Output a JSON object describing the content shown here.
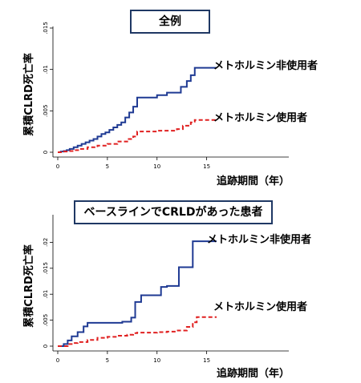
{
  "chart_data": [
    {
      "type": "line",
      "title": "全例",
      "xlabel": "追跡期間（年）",
      "ylabel": "累積CLRD死亡率",
      "xlim": [
        0,
        16
      ],
      "ylim": [
        0,
        0.015
      ],
      "x_ticks": [
        "0",
        "5",
        "10",
        "15"
      ],
      "y_ticks": [
        "0",
        ".005",
        ".01",
        ".015"
      ],
      "grid": false,
      "series": [
        {
          "name": "メトホルミン非使用者",
          "color": "#1f3a93",
          "style": "solid",
          "x": [
            0,
            0.3,
            0.6,
            0.9,
            1.2,
            1.6,
            2.0,
            2.4,
            2.8,
            3.2,
            3.6,
            4.0,
            4.4,
            4.8,
            5.2,
            5.6,
            6.0,
            6.4,
            6.8,
            7.2,
            7.6,
            8.0,
            9.0,
            10.0,
            11.0,
            12.0,
            12.4,
            13.0,
            13.4,
            13.8,
            16.0
          ],
          "y": [
            0,
            8e-05,
            0.00015,
            0.00025,
            0.0004,
            0.0006,
            0.0008,
            0.001,
            0.0012,
            0.0014,
            0.0016,
            0.0019,
            0.0022,
            0.0024,
            0.0027,
            0.003,
            0.0033,
            0.0036,
            0.0042,
            0.0048,
            0.0055,
            0.0066,
            0.0066,
            0.0069,
            0.0072,
            0.0072,
            0.0079,
            0.0086,
            0.0093,
            0.0102,
            0.0102
          ]
        },
        {
          "name": "メトホルミン使用者",
          "color": "#e02020",
          "style": "dashed",
          "x": [
            0,
            0.6,
            1.0,
            1.6,
            2.2,
            3.0,
            4.0,
            5.0,
            6.0,
            7.0,
            7.6,
            8.0,
            10.0,
            12.0,
            12.6,
            13.4,
            13.8,
            16.0
          ],
          "y": [
            0,
            8e-05,
            0.00015,
            0.00025,
            0.0004,
            0.0006,
            0.0008,
            0.001,
            0.0013,
            0.0016,
            0.0019,
            0.0025,
            0.0026,
            0.0028,
            0.0032,
            0.0036,
            0.0039,
            0.0039
          ]
        }
      ]
    },
    {
      "type": "line",
      "title": "ベースラインでCRLDがあった患者",
      "xlabel": "追跡期間（年）",
      "ylabel": "累積CLRD死亡率",
      "xlim": [
        0,
        16
      ],
      "ylim": [
        0,
        0.025
      ],
      "x_ticks": [
        "0",
        "5",
        "10",
        "15"
      ],
      "y_ticks": [
        "0",
        ".005",
        ".01",
        ".015",
        ".02"
      ],
      "grid": false,
      "series": [
        {
          "name": "メトホルミン非使用者",
          "color": "#1f3a93",
          "style": "solid",
          "x": [
            0,
            0.6,
            1.0,
            1.4,
            2.0,
            2.6,
            3.0,
            5.0,
            6.5,
            7.4,
            7.8,
            8.4,
            9.0,
            9.6,
            10.4,
            11.0,
            11.6,
            12.2,
            13.0,
            13.6,
            16.0
          ],
          "y": [
            0,
            0.0004,
            0.0011,
            0.0019,
            0.0027,
            0.0038,
            0.0045,
            0.0045,
            0.0047,
            0.0055,
            0.0085,
            0.0098,
            0.0098,
            0.0098,
            0.0114,
            0.0116,
            0.0116,
            0.0152,
            0.0152,
            0.0202,
            0.0202
          ]
        },
        {
          "name": "メトホルミン使用者",
          "color": "#e02020",
          "style": "dashed",
          "x": [
            0,
            1.0,
            1.5,
            2.0,
            3.0,
            4.0,
            5.0,
            6.0,
            7.0,
            7.6,
            8.0,
            10.0,
            11.0,
            12.0,
            13.0,
            13.6,
            14.0,
            16.0
          ],
          "y": [
            0,
            0.0004,
            0.0006,
            0.0008,
            0.0012,
            0.0016,
            0.0018,
            0.002,
            0.0022,
            0.0025,
            0.0026,
            0.0027,
            0.0028,
            0.003,
            0.0037,
            0.0046,
            0.0056,
            0.0056
          ]
        }
      ]
    }
  ]
}
